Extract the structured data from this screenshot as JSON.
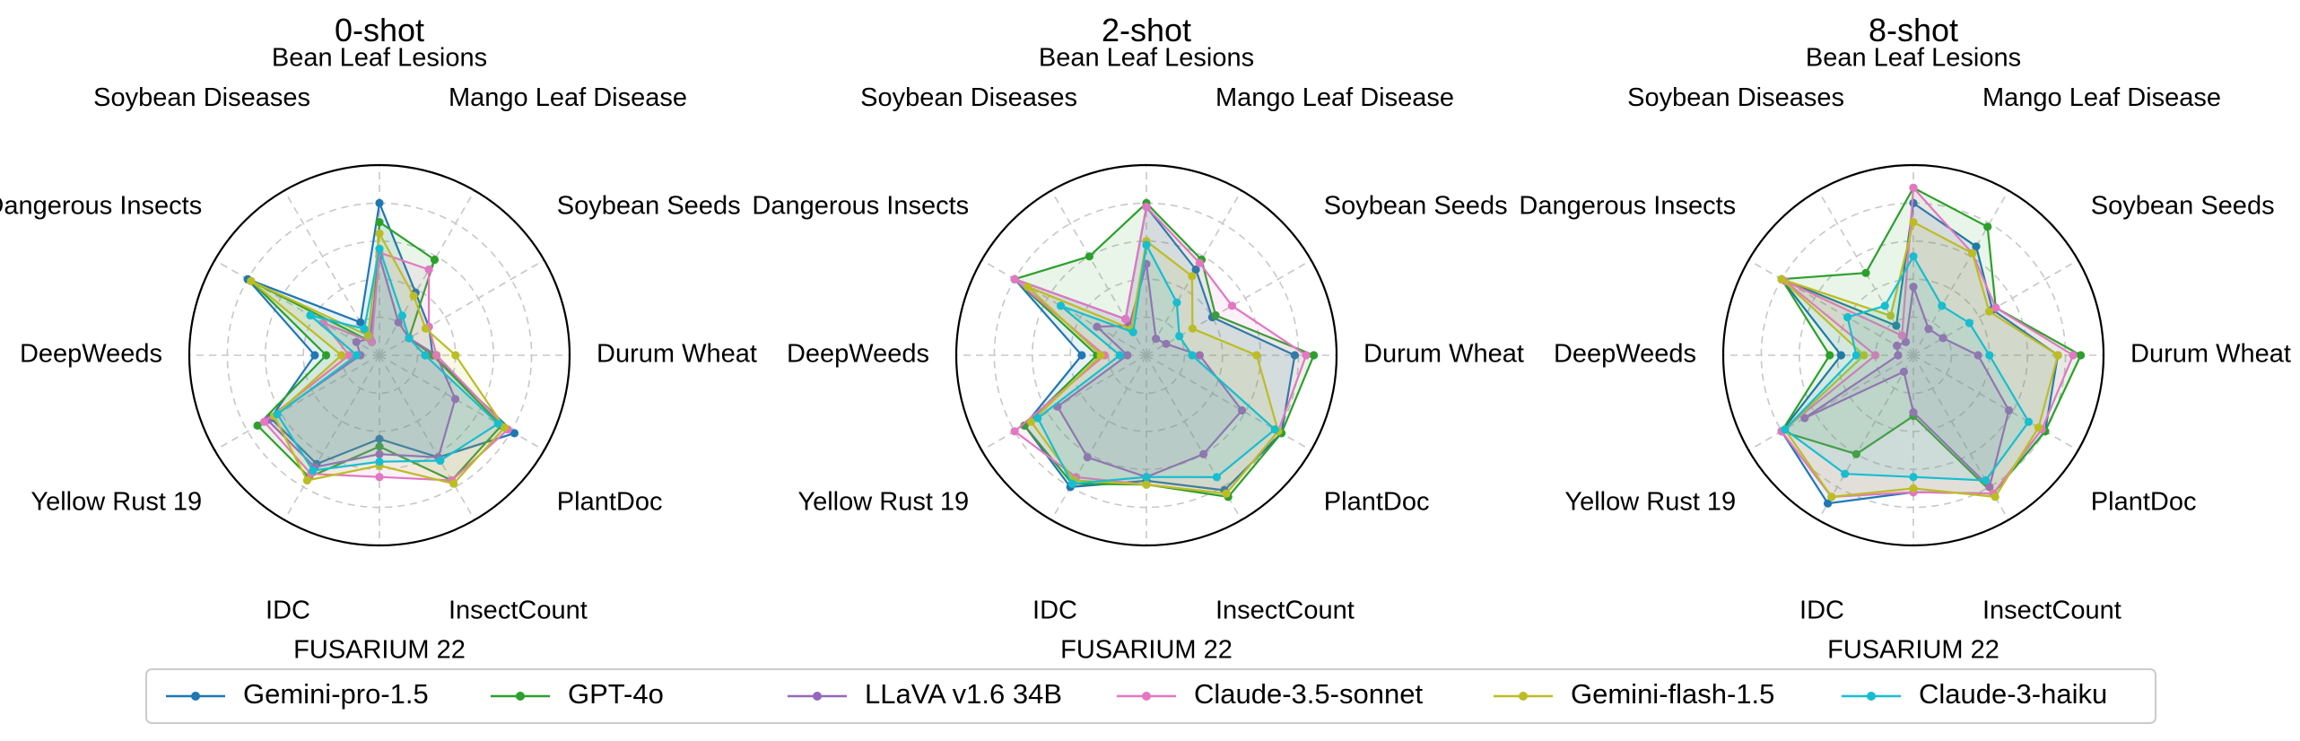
{
  "chart_data": [
    {
      "type": "radar",
      "title": "0-shot",
      "categories": [
        "Bean Leaf Lesions",
        "Mango Leaf Disease",
        "Soybean Seeds",
        "Durum Wheat",
        "PlantDoc",
        "InsectCount",
        "FUSARIUM 22",
        "IDC",
        "Yellow Rust 19",
        "DeepWeeds",
        "Dangerous Insects",
        "Soybean Diseases"
      ],
      "rlim": [
        0,
        100
      ],
      "grid": true,
      "series": [
        {
          "name": "Gemini-pro-1.5",
          "values": [
            80,
            38,
            30,
            28,
            82,
            62,
            44,
            66,
            66,
            34,
            80,
            20
          ]
        },
        {
          "name": "GPT-4o",
          "values": [
            70,
            58,
            18,
            28,
            74,
            76,
            48,
            74,
            74,
            28,
            78,
            8
          ]
        },
        {
          "name": "LLaVA v1.6 34B",
          "values": [
            52,
            20,
            18,
            30,
            46,
            62,
            52,
            68,
            68,
            10,
            14,
            10
          ]
        },
        {
          "name": "Claude-3.5-sonnet",
          "values": [
            54,
            52,
            30,
            30,
            78,
            76,
            64,
            72,
            70,
            16,
            34,
            8
          ]
        },
        {
          "name": "Gemini-flash-1.5",
          "values": [
            64,
            36,
            28,
            40,
            76,
            78,
            58,
            76,
            64,
            20,
            78,
            12
          ]
        },
        {
          "name": "Claude-3-haiku",
          "values": [
            56,
            24,
            18,
            24,
            72,
            64,
            56,
            70,
            62,
            12,
            42,
            16
          ]
        }
      ]
    },
    {
      "type": "radar",
      "title": "2-shot",
      "categories": [
        "Bean Leaf Lesions",
        "Mango Leaf Disease",
        "Soybean Seeds",
        "Durum Wheat",
        "PlantDoc",
        "InsectCount",
        "FUSARIUM 22",
        "IDC",
        "Yellow Rust 19",
        "DeepWeeds",
        "Dangerous Insects",
        "Soybean Diseases"
      ],
      "rlim": [
        0,
        100
      ],
      "grid": true,
      "series": [
        {
          "name": "Gemini-pro-1.5",
          "values": [
            78,
            52,
            40,
            78,
            82,
            82,
            66,
            80,
            74,
            34,
            80,
            22
          ]
        },
        {
          "name": "GPT-4o",
          "values": [
            80,
            58,
            42,
            88,
            82,
            86,
            68,
            78,
            74,
            26,
            80,
            60
          ]
        },
        {
          "name": "LLaVA v1.6 34B",
          "values": [
            48,
            10,
            12,
            28,
            58,
            60,
            64,
            62,
            54,
            10,
            30,
            18
          ]
        },
        {
          "name": "Claude-3.5-sonnet",
          "values": [
            78,
            56,
            52,
            84,
            80,
            84,
            68,
            74,
            80,
            22,
            80,
            22
          ]
        },
        {
          "name": "Gemini-flash-1.5",
          "values": [
            60,
            48,
            28,
            58,
            80,
            84,
            68,
            76,
            70,
            24,
            72,
            16
          ]
        },
        {
          "name": "Claude-3-haiku",
          "values": [
            58,
            32,
            20,
            24,
            78,
            74,
            64,
            78,
            66,
            14,
            52,
            14
          ]
        }
      ]
    },
    {
      "type": "radar",
      "title": "8-shot",
      "categories": [
        "Bean Leaf Lesions",
        "Mango Leaf Disease",
        "Soybean Seeds",
        "Durum Wheat",
        "PlantDoc",
        "InsectCount",
        "FUSARIUM 22",
        "IDC",
        "Yellow Rust 19",
        "DeepWeeds",
        "Dangerous Insects",
        "Soybean Diseases"
      ],
      "rlim": [
        0,
        100
      ],
      "grid": true,
      "series": [
        {
          "name": "Gemini-pro-1.5",
          "values": [
            80,
            66,
            48,
            76,
            80,
            84,
            72,
            90,
            80,
            38,
            80,
            18
          ]
        },
        {
          "name": "GPT-4o",
          "values": [
            88,
            78,
            50,
            88,
            80,
            84,
            32,
            60,
            80,
            44,
            80,
            50
          ]
        },
        {
          "name": "LLaVA v1.6 34B",
          "values": [
            36,
            16,
            18,
            34,
            58,
            80,
            30,
            10,
            66,
            8,
            10,
            8
          ]
        },
        {
          "name": "Claude-3.5-sonnet",
          "values": [
            88,
            62,
            50,
            84,
            78,
            84,
            72,
            86,
            80,
            20,
            78,
            12
          ]
        },
        {
          "name": "Gemini-flash-1.5",
          "values": [
            70,
            62,
            46,
            76,
            76,
            86,
            70,
            86,
            78,
            26,
            80,
            24
          ]
        },
        {
          "name": "Claude-3-haiku",
          "values": [
            52,
            30,
            34,
            40,
            70,
            76,
            64,
            72,
            78,
            30,
            40,
            30
          ]
        }
      ]
    }
  ],
  "legend": {
    "placement": "bottom",
    "items": [
      {
        "name": "Gemini-pro-1.5",
        "color": "#1f77b4"
      },
      {
        "name": "GPT-4o",
        "color": "#2ca02c"
      },
      {
        "name": "LLaVA v1.6 34B",
        "color": "#9467bd"
      },
      {
        "name": "Claude-3.5-sonnet",
        "color": "#e377c2"
      },
      {
        "name": "Gemini-flash-1.5",
        "color": "#bcbd22"
      },
      {
        "name": "Claude-3-haiku",
        "color": "#17becf"
      }
    ]
  }
}
